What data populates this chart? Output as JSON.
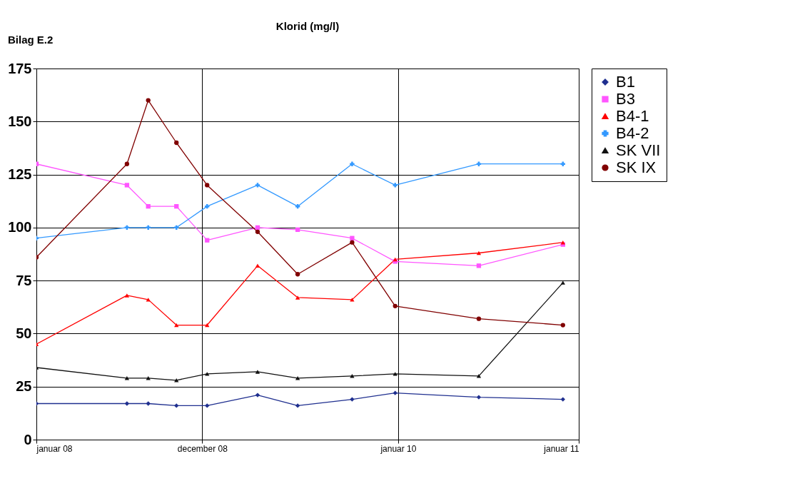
{
  "chart_data": {
    "type": "line",
    "title": "Klorid (mg/l)",
    "annotations": [
      "Bilag E.2"
    ],
    "x": [
      "2008-01-01",
      "2008-07-02",
      "2008-08-14",
      "2008-10-10",
      "2008-12-11",
      "2009-03-23",
      "2009-06-12",
      "2009-09-30",
      "2009-12-26",
      "2010-06-13",
      "2010-11-30"
    ],
    "series": [
      {
        "name": "B1",
        "color": "#1f2f8f",
        "marker": "diamond",
        "values": [
          17,
          17,
          17,
          16,
          16,
          21,
          16,
          19,
          22,
          20,
          19
        ]
      },
      {
        "name": "B3",
        "color": "#ff55ff",
        "marker": "square",
        "values": [
          130,
          120,
          110,
          110,
          94,
          100,
          99,
          95,
          84,
          82,
          92
        ]
      },
      {
        "name": "B4-1",
        "color": "#ff0000",
        "marker": "triangle",
        "values": [
          45,
          68,
          66,
          54,
          54,
          82,
          67,
          66,
          85,
          88,
          93
        ]
      },
      {
        "name": "B4-2",
        "color": "#3399ff",
        "marker": "cross",
        "values": [
          95,
          100,
          100,
          100,
          110,
          120,
          110,
          130,
          120,
          130,
          130
        ]
      },
      {
        "name": "SK VII",
        "color": "#111111",
        "marker": "triangle",
        "values": [
          34,
          29,
          29,
          28,
          31,
          32,
          29,
          30,
          31,
          30,
          74
        ]
      },
      {
        "name": "SK IX",
        "color": "#800000",
        "marker": "circle",
        "values": [
          86,
          130,
          160,
          140,
          120,
          98,
          78,
          93,
          63,
          57,
          54
        ]
      }
    ],
    "xlim": [
      "2008-01-01",
      "2011-01-01"
    ],
    "xticks": [
      {
        "value": "2008-01-01",
        "label": "januar 08"
      },
      {
        "value": "2008-12-01",
        "label": "december 08"
      },
      {
        "value": "2010-01-01",
        "label": "januar 10"
      },
      {
        "value": "2011-01-01",
        "label": "januar 11"
      }
    ],
    "ylim": [
      0,
      175
    ],
    "yticks": [
      0,
      25,
      50,
      75,
      100,
      125,
      150,
      175
    ],
    "grid": true,
    "legend": "top right",
    "line_style": "solid"
  }
}
